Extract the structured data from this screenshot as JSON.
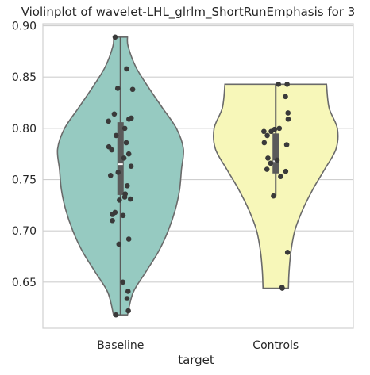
{
  "chart_data": {
    "type": "violin",
    "title": "Violinplot of wavelet-LHL_glrlm_ShortRunEmphasis for 3",
    "xlabel": "target",
    "ylabel": "",
    "categories": [
      "Baseline",
      "Controls"
    ],
    "ylim": [
      0.605,
      0.902
    ],
    "yticks": [
      0.65,
      0.7,
      0.75,
      0.8,
      0.85,
      0.9
    ],
    "ytick_labels": [
      "0.65",
      "0.70",
      "0.75",
      "0.80",
      "0.85",
      "0.90"
    ],
    "grid": "horizontal",
    "colors": {
      "Baseline": "#96cac1",
      "Controls": "#f7f7b9",
      "outline": "#6a6a6a",
      "points": "#3a3a3a",
      "box": "#5a5a5a"
    },
    "series": [
      {
        "category": "Baseline",
        "range": [
          0.618,
          0.889
        ],
        "quartiles": [
          0.735,
          0.765,
          0.806
        ],
        "median": 0.765,
        "whiskers": [
          0.618,
          0.889
        ],
        "density": [
          [
            0.618,
            0.11
          ],
          [
            0.64,
            0.2
          ],
          [
            0.66,
            0.4
          ],
          [
            0.68,
            0.6
          ],
          [
            0.7,
            0.75
          ],
          [
            0.72,
            0.86
          ],
          [
            0.74,
            0.93
          ],
          [
            0.76,
            0.96
          ],
          [
            0.78,
            0.99
          ],
          [
            0.8,
            0.88
          ],
          [
            0.82,
            0.66
          ],
          [
            0.84,
            0.44
          ],
          [
            0.86,
            0.24
          ],
          [
            0.88,
            0.12
          ],
          [
            0.889,
            0.11
          ]
        ],
        "points": [
          0.889,
          0.858,
          0.839,
          0.838,
          0.814,
          0.81,
          0.809,
          0.807,
          0.8,
          0.793,
          0.786,
          0.782,
          0.779,
          0.775,
          0.771,
          0.763,
          0.757,
          0.754,
          0.744,
          0.736,
          0.733,
          0.731,
          0.73,
          0.718,
          0.716,
          0.715,
          0.71,
          0.692,
          0.687,
          0.65,
          0.641,
          0.634,
          0.622,
          0.618
        ]
      },
      {
        "category": "Controls",
        "range": [
          0.644,
          0.843
        ],
        "quartiles": [
          0.756,
          0.768,
          0.795
        ],
        "median": 0.768,
        "whiskers": [
          0.734,
          0.843
        ],
        "density": [
          [
            0.644,
            0.2
          ],
          [
            0.66,
            0.21
          ],
          [
            0.68,
            0.24
          ],
          [
            0.7,
            0.3
          ],
          [
            0.72,
            0.42
          ],
          [
            0.74,
            0.58
          ],
          [
            0.76,
            0.77
          ],
          [
            0.78,
            0.95
          ],
          [
            0.8,
            0.97
          ],
          [
            0.82,
            0.84
          ],
          [
            0.843,
            0.8
          ]
        ],
        "points": [
          0.843,
          0.843,
          0.831,
          0.815,
          0.809,
          0.8,
          0.799,
          0.797,
          0.797,
          0.793,
          0.786,
          0.784,
          0.771,
          0.769,
          0.766,
          0.76,
          0.758,
          0.753,
          0.734,
          0.679,
          0.645,
          0.644
        ]
      }
    ]
  }
}
